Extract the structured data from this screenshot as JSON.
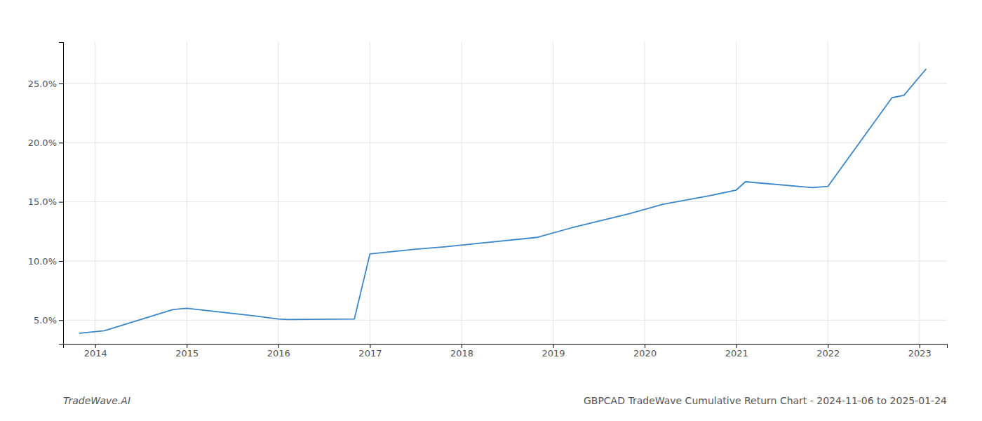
{
  "chart_data": {
    "type": "line",
    "annotations": [
      "TradeWave.AI",
      "GBPCAD TradeWave Cumulative Return Chart - 2024-11-06 to 2025-01-24"
    ],
    "x": [
      2013.83,
      2014.1,
      2014.85,
      2015.0,
      2015.75,
      2016.0,
      2016.1,
      2016.83,
      2017.0,
      2017.5,
      2017.83,
      2018.2,
      2018.83,
      2019.2,
      2019.83,
      2020.2,
      2020.7,
      2021.0,
      2021.1,
      2021.83,
      2022.0,
      2022.7,
      2022.83,
      2023.07
    ],
    "values": [
      3.9,
      4.1,
      5.9,
      6.0,
      5.35,
      5.1,
      5.05,
      5.1,
      10.6,
      11.0,
      11.2,
      11.5,
      12.0,
      12.8,
      14.0,
      14.8,
      15.5,
      16.0,
      16.7,
      16.2,
      16.3,
      23.8,
      24.0,
      26.2
    ],
    "color": "#3a86c8",
    "xlim": [
      2013.65,
      2023.3
    ],
    "ylim": [
      3.0,
      28.5
    ],
    "xticks": [
      2014,
      2015,
      2016,
      2017,
      2018,
      2019,
      2020,
      2021,
      2022,
      2023
    ],
    "yticks": [
      {
        "value": 5.0,
        "label": "5.0%"
      },
      {
        "value": 10.0,
        "label": "10.0%"
      },
      {
        "value": 15.0,
        "label": "15.0%"
      },
      {
        "value": 20.0,
        "label": "20.0%"
      },
      {
        "value": 25.0,
        "label": "25.0%"
      }
    ],
    "grid": true
  }
}
